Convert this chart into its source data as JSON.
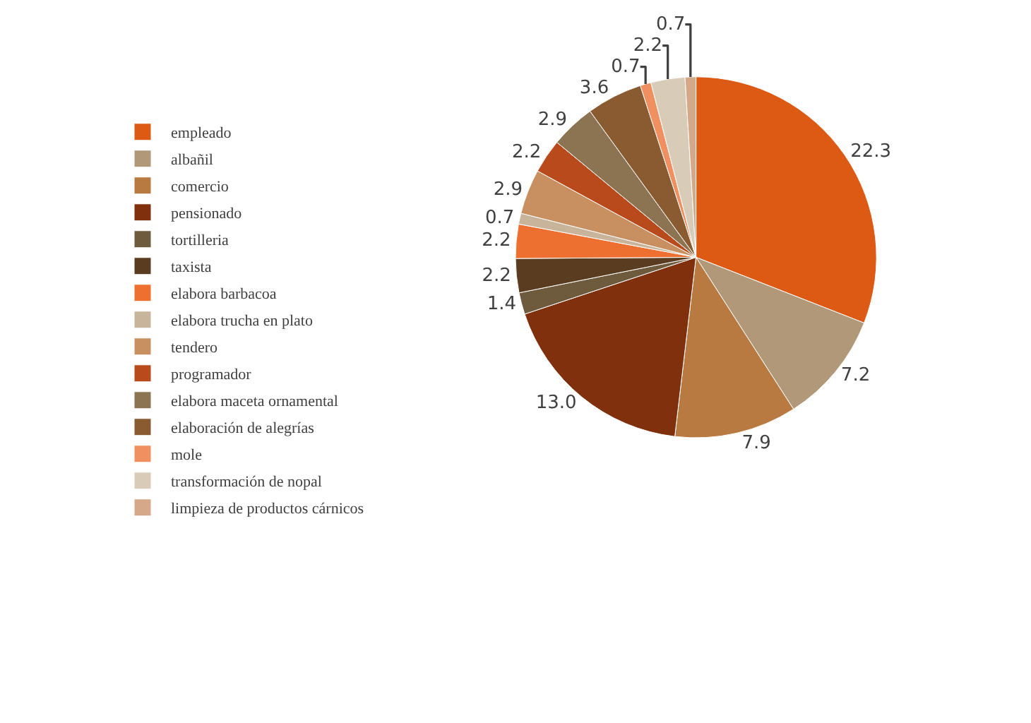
{
  "chart_data": {
    "type": "pie",
    "categories": [
      "empleado",
      "albañil",
      "comercio",
      "pensionado",
      "tortilleria",
      "taxista",
      "elabora barbacoa",
      "elabora trucha en plato",
      "tendero",
      "programador",
      "elabora maceta ornamental",
      "elaboración de alegrías",
      "mole",
      "transformación de nopal",
      "limpieza de productos cárnicos"
    ],
    "values": [
      22.3,
      7.2,
      7.9,
      13.0,
      1.4,
      2.2,
      2.2,
      0.7,
      2.9,
      2.2,
      2.9,
      3.6,
      0.7,
      2.2,
      0.7
    ],
    "value_labels": [
      "22.3",
      "7.2",
      "7.9",
      "13.0",
      "1.4",
      "2.2",
      "2.2",
      "0.7",
      "2.9",
      "2.2",
      "2.9",
      "3.6",
      "0.7",
      "2.2",
      "0.7"
    ],
    "colors": [
      "#dd5a14",
      "#b09878",
      "#b87a40",
      "#80300c",
      "#6e5a3c",
      "#5a3c20",
      "#ee7030",
      "#c8b49a",
      "#c89060",
      "#b84a1c",
      "#8c7452",
      "#8a5a30",
      "#f09060",
      "#d8ccb8",
      "#d4a888"
    ],
    "legend": "left"
  }
}
